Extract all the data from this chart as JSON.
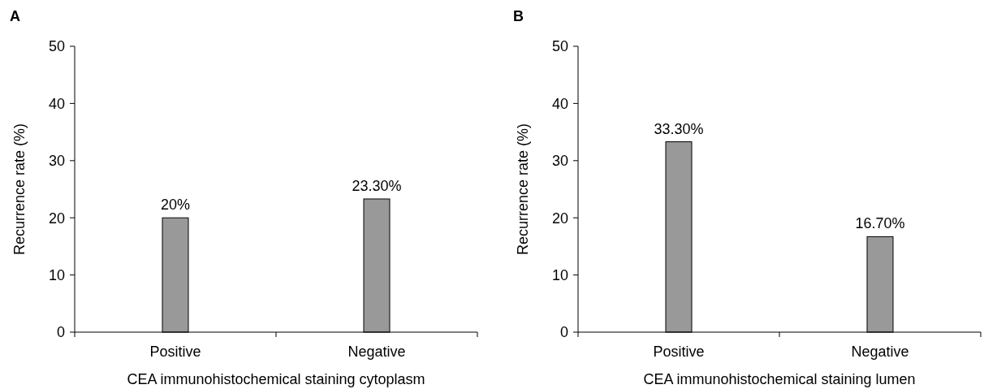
{
  "chart_data": [
    {
      "type": "bar",
      "title": "A",
      "categories": [
        "Positive",
        "Negative"
      ],
      "values": [
        20,
        23.3
      ],
      "value_labels": [
        "20%",
        "23.30%"
      ],
      "color": "#999999",
      "xlabel": "CEA immunohistochemical staining cytoplasm",
      "ylabel": "Recurrence rate (%)",
      "ylim": [
        0,
        50
      ],
      "yticks": [
        0,
        10,
        20,
        30,
        40,
        50
      ]
    },
    {
      "type": "bar",
      "title": "B",
      "categories": [
        "Positive",
        "Negative"
      ],
      "values": [
        33.3,
        16.7
      ],
      "value_labels": [
        "33.30%",
        "16.70%"
      ],
      "color": "#999999",
      "xlabel": "CEA immunohistochemical staining lumen",
      "ylabel": "Recurrence rate (%)",
      "ylim": [
        0,
        50
      ],
      "yticks": [
        0,
        10,
        20,
        30,
        40,
        50
      ]
    }
  ]
}
